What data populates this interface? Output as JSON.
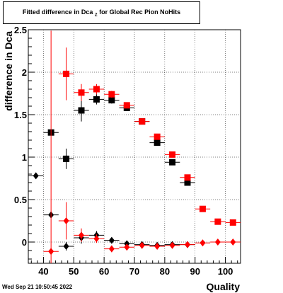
{
  "window": {
    "title_main": "Fitted difference in Dca",
    "title_sub": "Z",
    "title_rest": " for Global Rec Pion NoHits",
    "timestamp": "Wed Sep 21 10:50:45 2022"
  },
  "chart_data": {
    "type": "scatter",
    "title": "Fitted difference in Dca Z for Global Rec Pion NoHits",
    "xlabel": "Quality",
    "ylabel": "difference in Dca",
    "xlim": [
      35,
      105
    ],
    "ylim": [
      -0.25,
      2.5
    ],
    "xticks": [
      40,
      50,
      60,
      70,
      80,
      90,
      100
    ],
    "xtick_labels": [
      "40",
      "50",
      "60",
      "70",
      "80",
      "90",
      "100"
    ],
    "yticks": [
      0,
      0.5,
      1,
      1.5,
      2,
      2.5
    ],
    "ytick_labels": [
      "0",
      "0.5",
      "1",
      "1.5",
      "2",
      "2.5"
    ],
    "grid": true,
    "series": [
      {
        "marker": "square",
        "color": "#000000",
        "points": [
          {
            "x": 42.5,
            "y": 1.29,
            "err": 0.02
          },
          {
            "x": 47.5,
            "y": 0.98,
            "err": 0.12
          },
          {
            "x": 52.5,
            "y": 1.55,
            "err": 0.13
          },
          {
            "x": 57.5,
            "y": 1.68,
            "err": 0.06
          },
          {
            "x": 62.5,
            "y": 1.67,
            "err": 0.04
          },
          {
            "x": 67.5,
            "y": 1.58,
            "err": 0.03
          },
          {
            "x": 72.5,
            "y": 1.42,
            "err": 0.02
          },
          {
            "x": 77.5,
            "y": 1.17,
            "err": 0.02
          },
          {
            "x": 82.5,
            "y": 0.94,
            "err": 0.02
          },
          {
            "x": 87.5,
            "y": 0.7,
            "err": 0.02
          }
        ]
      },
      {
        "marker": "square",
        "color": "#ff0000",
        "points": [
          {
            "x": 47.5,
            "y": 1.98,
            "err": 0.31
          },
          {
            "x": 52.5,
            "y": 1.76,
            "err": 0.1
          },
          {
            "x": 57.5,
            "y": 1.8,
            "err": 0.06
          },
          {
            "x": 62.5,
            "y": 1.74,
            "err": 0.04
          },
          {
            "x": 67.5,
            "y": 1.61,
            "err": 0.03
          },
          {
            "x": 72.5,
            "y": 1.42,
            "err": 0.02
          },
          {
            "x": 77.5,
            "y": 1.24,
            "err": 0.02
          },
          {
            "x": 82.5,
            "y": 1.03,
            "err": 0.02
          },
          {
            "x": 87.5,
            "y": 0.76,
            "err": 0.02
          },
          {
            "x": 92.5,
            "y": 0.39,
            "err": 0.01
          },
          {
            "x": 97.5,
            "y": 0.24,
            "err": 0.01
          },
          {
            "x": 102.5,
            "y": 0.23,
            "err": 0.01
          }
        ]
      },
      {
        "marker": "diamond",
        "color": "#000000",
        "points": [
          {
            "x": 37.5,
            "y": 0.78,
            "err": 0.02
          },
          {
            "x": 42.5,
            "y": 0.32,
            "err": 0.02
          },
          {
            "x": 47.5,
            "y": -0.05,
            "err": 0.05
          },
          {
            "x": 52.5,
            "y": 0.05,
            "err": 0.07
          },
          {
            "x": 57.5,
            "y": 0.08,
            "err": 0.05
          },
          {
            "x": 62.5,
            "y": 0.02,
            "err": 0.02
          },
          {
            "x": 67.5,
            "y": -0.02,
            "err": 0.02
          },
          {
            "x": 72.5,
            "y": -0.03,
            "err": 0.01
          },
          {
            "x": 77.5,
            "y": -0.04,
            "err": 0.01
          },
          {
            "x": 82.5,
            "y": -0.03,
            "err": 0.01
          },
          {
            "x": 87.5,
            "y": -0.03,
            "err": 0.01
          }
        ]
      },
      {
        "marker": "diamond",
        "color": "#ff0000",
        "points": [
          {
            "x": 42.5,
            "y": -0.11,
            "err": 2.6
          },
          {
            "x": 47.5,
            "y": 0.25,
            "err": 0.22
          },
          {
            "x": 52.5,
            "y": 0.08,
            "err": 0.08
          },
          {
            "x": 57.5,
            "y": 0.04,
            "err": 0.05
          },
          {
            "x": 62.5,
            "y": -0.08,
            "err": 0.04
          },
          {
            "x": 67.5,
            "y": -0.06,
            "err": 0.02
          },
          {
            "x": 72.5,
            "y": -0.04,
            "err": 0.01
          },
          {
            "x": 77.5,
            "y": -0.05,
            "err": 0.01
          },
          {
            "x": 82.5,
            "y": -0.04,
            "err": 0.01
          },
          {
            "x": 87.5,
            "y": -0.03,
            "err": 0.01
          },
          {
            "x": 92.5,
            "y": -0.01,
            "err": 0.01
          },
          {
            "x": 97.5,
            "y": 0.0,
            "err": 0.01
          },
          {
            "x": 102.5,
            "y": 0.0,
            "err": 0.01
          }
        ]
      }
    ]
  }
}
